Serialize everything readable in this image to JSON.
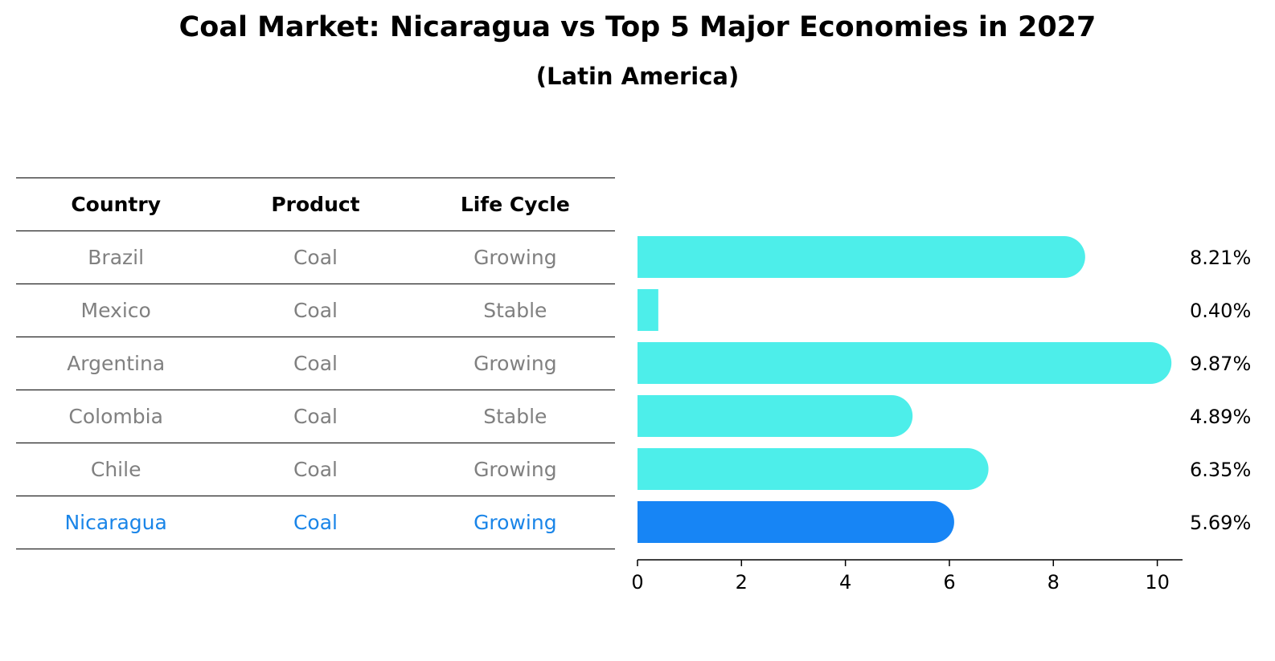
{
  "title": "Coal Market: Nicaragua vs Top 5 Major Economies in 2027",
  "subtitle": "(Latin America)",
  "table": {
    "headers": [
      "Country",
      "Product",
      "Life Cycle"
    ],
    "rows": [
      {
        "country": "Brazil",
        "product": "Coal",
        "life_cycle": "Growing"
      },
      {
        "country": "Mexico",
        "product": "Coal",
        "life_cycle": "Stable"
      },
      {
        "country": "Argentina",
        "product": "Coal",
        "life_cycle": "Growing"
      },
      {
        "country": "Colombia",
        "product": "Coal",
        "life_cycle": "Stable"
      },
      {
        "country": "Chile",
        "product": "Coal",
        "life_cycle": "Growing"
      },
      {
        "country": "Nicaragua",
        "product": "Coal",
        "life_cycle": "Growing"
      }
    ]
  },
  "chart_data": {
    "type": "bar",
    "orientation": "horizontal",
    "categories": [
      "Brazil",
      "Mexico",
      "Argentina",
      "Colombia",
      "Chile",
      "Nicaragua"
    ],
    "values": [
      8.21,
      0.4,
      9.87,
      4.89,
      6.35,
      5.69
    ],
    "value_labels": [
      "8.21%",
      "0.40%",
      "9.87%",
      "4.89%",
      "6.35%",
      "5.69%"
    ],
    "highlight_index": 5,
    "xlim": [
      0,
      10.3
    ],
    "xticks": [
      0,
      2,
      4,
      6,
      8,
      10
    ],
    "xtick_labels": [
      "0",
      "2",
      "4",
      "6",
      "8",
      "10"
    ],
    "bar_style": "rounded-end",
    "colors": {
      "default": "#4deeea",
      "highlight": "#1785f5"
    }
  },
  "colors": {
    "muted_text": "#808080",
    "highlight_text": "#1a85e8"
  }
}
